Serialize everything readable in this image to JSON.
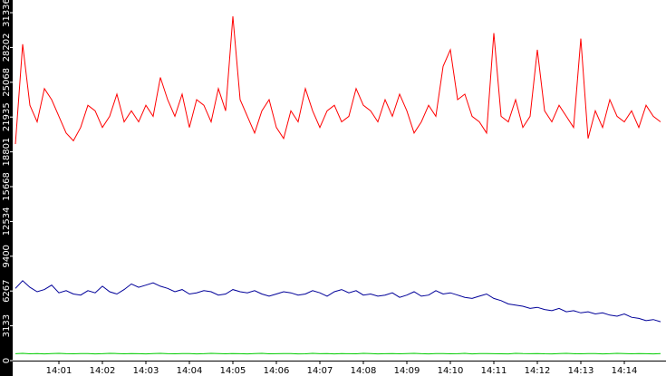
{
  "chart_data": {
    "type": "line",
    "categories": [
      null,
      null,
      null,
      null,
      null,
      null,
      "14:01",
      null,
      null,
      null,
      null,
      null,
      "14:02",
      null,
      null,
      null,
      null,
      null,
      "14:03",
      null,
      null,
      null,
      null,
      null,
      "14:04",
      null,
      null,
      null,
      null,
      null,
      "14:05",
      null,
      null,
      null,
      null,
      null,
      "14:06",
      null,
      null,
      null,
      null,
      null,
      "14:07",
      null,
      null,
      null,
      null,
      null,
      "14:08",
      null,
      null,
      null,
      null,
      null,
      "14:09",
      null,
      null,
      null,
      null,
      null,
      "14:10",
      null,
      null,
      null,
      null,
      null,
      "14:11",
      null,
      null,
      null,
      null,
      null,
      "14:12",
      null,
      null,
      null,
      null,
      null,
      "14:13",
      null,
      null,
      null,
      null,
      null,
      "14:14",
      null,
      null,
      null,
      null,
      null
    ],
    "series": [
      {
        "color": "#ff0000",
        "values": [
          19500,
          28500,
          23000,
          21500,
          24500,
          23500,
          22000,
          20500,
          19800,
          21000,
          23000,
          22500,
          21000,
          22000,
          24000,
          21500,
          22500,
          21500,
          23000,
          22000,
          25500,
          23500,
          22000,
          24000,
          21000,
          23500,
          23000,
          21500,
          24500,
          22500,
          31000,
          23500,
          22000,
          20500,
          22500,
          23500,
          21000,
          20000,
          22500,
          21500,
          24500,
          22500,
          21000,
          22500,
          23000,
          21500,
          22000,
          24500,
          23000,
          22500,
          21500,
          23500,
          22000,
          24000,
          22500,
          20500,
          21500,
          23000,
          22000,
          26500,
          28000,
          23500,
          24000,
          22000,
          21500,
          20500,
          29500,
          22000,
          21500,
          23500,
          21000,
          22000,
          28000,
          22500,
          21500,
          23000,
          22000,
          21000,
          29000,
          20000,
          22500,
          21000,
          23500,
          22000,
          21500,
          22500,
          21000,
          23000,
          22000,
          21500
        ]
      },
      {
        "color": "#000099",
        "values": [
          6500,
          7200,
          6600,
          6200,
          6400,
          6800,
          6100,
          6300,
          6000,
          5900,
          6300,
          6100,
          6700,
          6200,
          6000,
          6400,
          6900,
          6600,
          6800,
          7000,
          6700,
          6500,
          6200,
          6400,
          6000,
          6100,
          6300,
          6200,
          5900,
          6000,
          6400,
          6200,
          6100,
          6300,
          6000,
          5800,
          6000,
          6200,
          6100,
          5900,
          6000,
          6300,
          6100,
          5800,
          6200,
          6400,
          6100,
          6300,
          5900,
          6000,
          5800,
          5900,
          6100,
          5700,
          5900,
          6200,
          5800,
          5900,
          6300,
          6000,
          6100,
          5900,
          5700,
          5600,
          5800,
          6000,
          5600,
          5400,
          5100,
          5000,
          4900,
          4700,
          4800,
          4600,
          4500,
          4700,
          4400,
          4500,
          4300,
          4400,
          4200,
          4300,
          4100,
          4000,
          4200,
          3900,
          3800,
          3600,
          3700,
          3500
        ]
      },
      {
        "color": "#00cc00",
        "values": [
          620,
          650,
          610,
          640,
          600,
          630,
          650,
          620,
          610,
          640,
          630,
          600,
          620,
          650,
          640,
          610,
          630,
          620,
          600,
          640,
          650,
          620,
          610,
          630,
          640,
          600,
          620,
          650,
          630,
          610,
          640,
          620,
          600,
          630,
          650,
          610,
          620,
          640,
          630,
          600,
          610,
          650,
          620,
          640,
          600,
          630,
          620,
          610,
          650,
          640,
          600,
          620,
          630,
          610,
          640,
          650,
          620,
          600,
          630,
          640,
          610,
          620,
          650,
          600,
          630,
          640,
          620,
          610,
          600,
          650,
          630,
          620,
          640,
          610,
          600,
          630,
          650,
          620,
          610,
          640,
          630,
          600,
          620,
          650,
          640,
          610,
          630,
          620,
          600,
          640
        ]
      }
    ],
    "ylim": [
      0,
      31336
    ],
    "yticks": [
      0,
      3133,
      6267,
      9400,
      12534,
      15668,
      18801,
      21935,
      25068,
      28202,
      31336
    ]
  }
}
